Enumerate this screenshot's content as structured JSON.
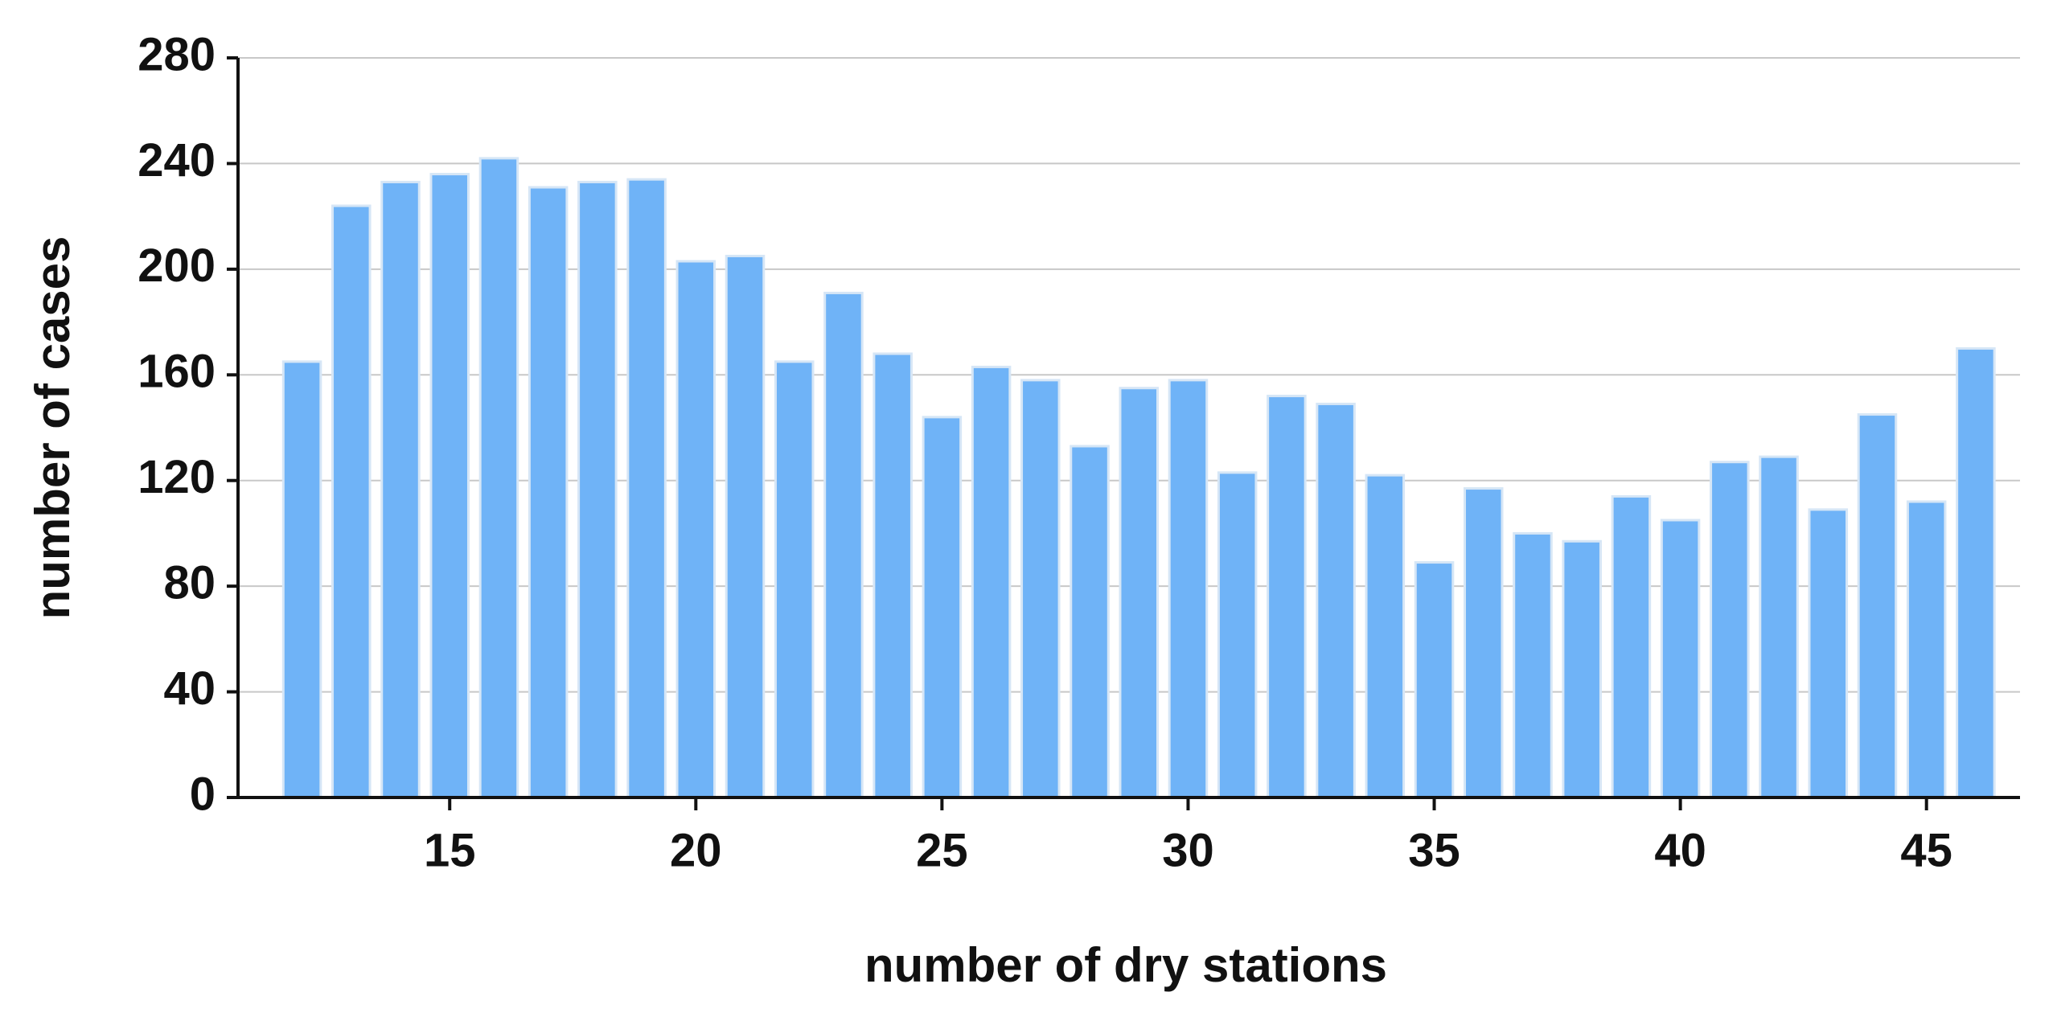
{
  "chart_data": {
    "type": "bar",
    "xlabel": "number of dry stations",
    "ylabel": "number of cases",
    "x": [
      12,
      13,
      14,
      15,
      16,
      17,
      18,
      19,
      20,
      21,
      22,
      23,
      24,
      25,
      26,
      27,
      28,
      29,
      30,
      31,
      32,
      33,
      34,
      35,
      36,
      37,
      38,
      39,
      40,
      41,
      42,
      43,
      44,
      45,
      46
    ],
    "values": [
      165,
      224,
      233,
      236,
      242,
      231,
      233,
      234,
      203,
      205,
      165,
      191,
      168,
      144,
      163,
      158,
      133,
      155,
      158,
      123,
      152,
      149,
      122,
      89,
      117,
      100,
      97,
      114,
      105,
      127,
      129,
      109,
      145,
      112,
      170
    ],
    "color": "#6fb3f7",
    "xlim": [
      10.7,
      46.9
    ],
    "xticks": [
      15,
      20,
      25,
      30,
      35,
      40,
      45
    ],
    "ylim": [
      0,
      280
    ],
    "yticks": [
      0,
      40,
      80,
      120,
      160,
      200,
      240,
      280
    ],
    "grid": true
  }
}
